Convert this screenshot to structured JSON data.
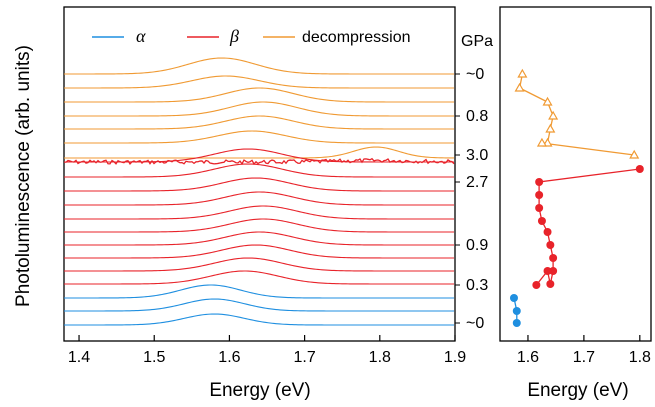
{
  "chart_data": [
    {
      "type": "line",
      "subtype": "stacked photoluminescence spectra",
      "xlabel": "Energy (eV)",
      "ylabel": "Photoluminescence (arb. units)",
      "xlim": [
        1.38,
        1.9
      ],
      "xticks": [
        "1.4",
        "1.5",
        "1.6",
        "1.7",
        "1.8",
        "1.9"
      ],
      "y_ticks": "none",
      "legend": {
        "placement": "top",
        "entries": [
          {
            "label": "α",
            "color": "#1f8fe0"
          },
          {
            "label": "β",
            "color": "#e8232a"
          },
          {
            "label": "decompression",
            "color": "#f09a33"
          }
        ]
      },
      "right_axis": {
        "title": "GPa",
        "labels": [
          "~0",
          "0.8",
          "3.0",
          "2.7",
          "0.9",
          "0.3",
          "~0"
        ]
      },
      "series": [
        {
          "phase": "decompression",
          "color": "#f09a33",
          "peaks": [
            1.59,
            1.595,
            1.64,
            1.645,
            1.64,
            1.63,
            1.795
          ]
        },
        {
          "phase": "β",
          "color": "#e8232a",
          "noisy_flat": true,
          "peaks": [
            1.62,
            1.625,
            1.625,
            1.635,
            1.64,
            1.645,
            1.645,
            1.64,
            1.635,
            1.625,
            1.62
          ]
        },
        {
          "phase": "α",
          "color": "#1f8fe0",
          "peaks": [
            1.575,
            1.58,
            1.58
          ]
        }
      ]
    },
    {
      "type": "scatter",
      "xlabel": "Energy (eV)",
      "xticks": [
        "1.6",
        "1.7",
        "1.8"
      ],
      "xlim": [
        1.55,
        1.82
      ],
      "series": [
        {
          "phase": "decompression",
          "marker": "open-triangle",
          "color": "#f09a33",
          "x": [
            1.59,
            1.585,
            1.635,
            1.645,
            1.64,
            1.635,
            1.625,
            1.79
          ]
        },
        {
          "phase": "β",
          "marker": "filled-circle",
          "color": "#e8232a",
          "x": [
            1.8,
            1.62,
            1.62,
            1.62,
            1.625,
            1.635,
            1.64,
            1.645,
            1.645,
            1.64,
            1.635,
            1.615
          ]
        },
        {
          "phase": "α",
          "marker": "filled-circle",
          "color": "#1f8fe0",
          "x": [
            1.575,
            1.58,
            1.58
          ]
        }
      ]
    }
  ]
}
